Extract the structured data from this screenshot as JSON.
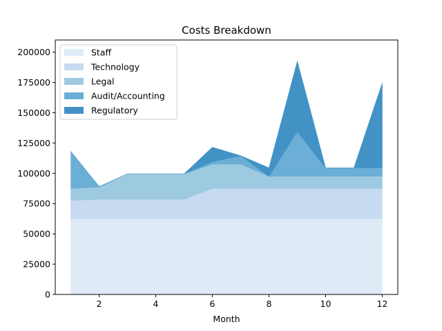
{
  "chart_data": {
    "type": "area",
    "stacked": true,
    "title": "Costs Breakdown",
    "xlabel": "Month",
    "ylabel": "",
    "x": [
      1,
      2,
      3,
      4,
      5,
      6,
      7,
      8,
      9,
      10,
      11,
      12
    ],
    "xlim": [
      0.45,
      12.55
    ],
    "ylim": [
      0,
      210000
    ],
    "xticks": [
      2,
      4,
      6,
      8,
      10,
      12
    ],
    "yticks": [
      0,
      25000,
      50000,
      75000,
      100000,
      125000,
      150000,
      175000,
      200000
    ],
    "grid": false,
    "legend_position": "top-left",
    "series": [
      {
        "name": "Staff",
        "color": "#deebf7",
        "values": [
          62500,
          62500,
          62500,
          62500,
          62500,
          62500,
          62500,
          62500,
          62500,
          62500,
          62500,
          62500
        ]
      },
      {
        "name": "Technology",
        "color": "#c6dbef",
        "values": [
          15000,
          16000,
          16000,
          16000,
          16000,
          25000,
          25000,
          25000,
          25000,
          25000,
          25000,
          25000
        ]
      },
      {
        "name": "Legal",
        "color": "#9ecae1",
        "values": [
          10000,
          10000,
          21000,
          21000,
          21000,
          20000,
          20000,
          10000,
          10000,
          10000,
          10000,
          10000
        ]
      },
      {
        "name": "Audit/Accounting",
        "color": "#6baed6",
        "values": [
          30500,
          500,
          0,
          0,
          0,
          2000,
          7000,
          0,
          37000,
          7000,
          7000,
          7000
        ]
      },
      {
        "name": "Regulatory",
        "color": "#4292c6",
        "values": [
          0,
          0,
          0,
          0,
          0,
          12000,
          0,
          7000,
          58000,
          0,
          0,
          70000
        ]
      }
    ]
  }
}
